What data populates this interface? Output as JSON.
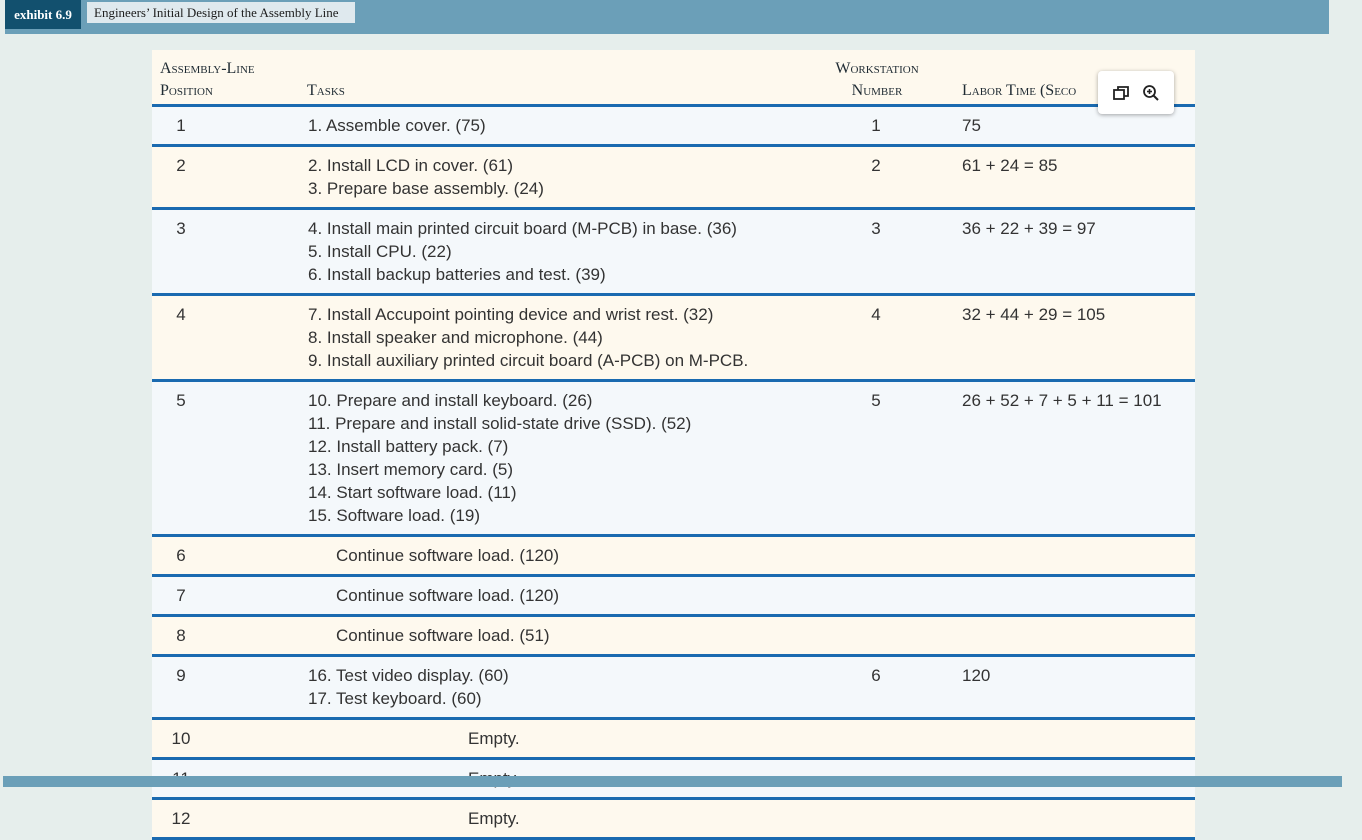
{
  "exhibit": {
    "number": "exhibit 6.9",
    "title": "Engineers’ Initial Design of the Assembly Line"
  },
  "header": {
    "position_line1": "Assembly-Line",
    "position_line2": "Position",
    "tasks": "Tasks",
    "ws_line1": "Workstation",
    "ws_line2": "Number",
    "labor_time": "Labor Time (Seco"
  },
  "rows": [
    {
      "pos": "1",
      "tasks": [
        "1. Assemble cover. (75)"
      ],
      "ws": "1",
      "time": "75"
    },
    {
      "pos": "2",
      "tasks": [
        "2. Install LCD in cover. (61)",
        "3. Prepare base assembly. (24)"
      ],
      "ws": "2",
      "time": "61 + 24 = 85"
    },
    {
      "pos": "3",
      "tasks": [
        "4. Install main printed circuit board (M-PCB) in base. (36)",
        "5. Install CPU. (22)",
        "6. Install backup batteries and test. (39)"
      ],
      "ws": "3",
      "time": "36 + 22 + 39 = 97"
    },
    {
      "pos": "4",
      "tasks": [
        "7. Install Accupoint pointing device and wrist rest. (32)",
        "8. Install speaker and microphone. (44)",
        "9. Install auxiliary printed circuit board (A-PCB) on M-PCB."
      ],
      "ws": "4",
      "time": "32 + 44 + 29 = 105"
    },
    {
      "pos": "5",
      "tasks": [
        "10. Prepare and install keyboard. (26)",
        "11. Prepare and install solid-state drive (SSD). (52)",
        "12. Install battery pack. (7)",
        "13. Insert memory card. (5)",
        "14. Start software load. (11)",
        "15. Software load. (19)"
      ],
      "ws": "5",
      "time": "26 + 52 + 7 + 5 + 11 = 101"
    },
    {
      "pos": "6",
      "tasks": [
        "Continue software load. (120)"
      ],
      "ws": "",
      "time": ""
    },
    {
      "pos": "7",
      "tasks": [
        "Continue software load. (120)"
      ],
      "ws": "",
      "time": ""
    },
    {
      "pos": "8",
      "tasks": [
        "Continue software load. (51)"
      ],
      "ws": "",
      "time": ""
    },
    {
      "pos": "9",
      "tasks": [
        "16. Test video display. (60)",
        "17. Test keyboard. (60)"
      ],
      "ws": "6",
      "time": "120"
    },
    {
      "pos": "10",
      "tasks": [
        "Empty."
      ],
      "ws": "",
      "time": ""
    },
    {
      "pos": "11",
      "tasks": [
        "Empty."
      ],
      "ws": "",
      "time": ""
    },
    {
      "pos": "12",
      "tasks": [
        "Empty."
      ],
      "ws": "",
      "time": ""
    }
  ],
  "icons": {
    "restore": "restore-window-icon",
    "zoom": "zoom-in-icon"
  },
  "colors": {
    "accent": "#1a6ab0",
    "topbar": "#6b9fb8",
    "badge": "#12506e",
    "cream": "#fef9ee",
    "alt": "#f4f8fb"
  }
}
